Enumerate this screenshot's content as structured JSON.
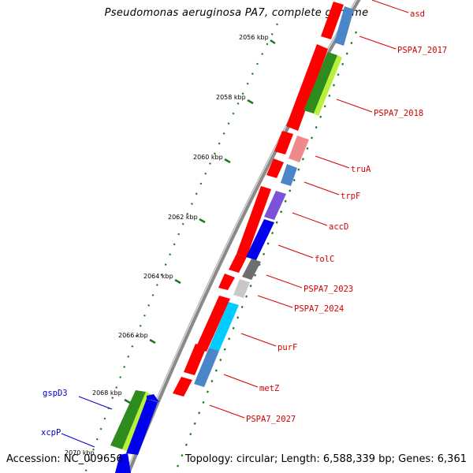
{
  "title": "Pseudomonas aeruginosa PA7, complete genome",
  "footer": {
    "accession": "Accession: NC_009656",
    "info": "Topology: circular; Length: 6,588,339 bp; Genes: 6,361"
  },
  "colors": {
    "forward_label": "#d40000",
    "reverse_label": "#0000cc",
    "backbone": "#808080",
    "tick": "#1a7a1a"
  },
  "ruler": [
    "2056 kbp",
    "2058 kbp",
    "2060 kbp",
    "2062 kbp",
    "2064 kbp",
    "2066 kbp",
    "2068 kbp",
    "2070 kbp"
  ],
  "genes_forward": [
    "asd",
    "PSPA7_2017",
    "PSPA7_2018",
    "truA",
    "trpF",
    "accD",
    "folC",
    "PSPA7_2023",
    "PSPA7_2024",
    "purF",
    "metZ",
    "PSPA7_2027"
  ],
  "genes_reverse": [
    "gspD3",
    "xcpP"
  ]
}
